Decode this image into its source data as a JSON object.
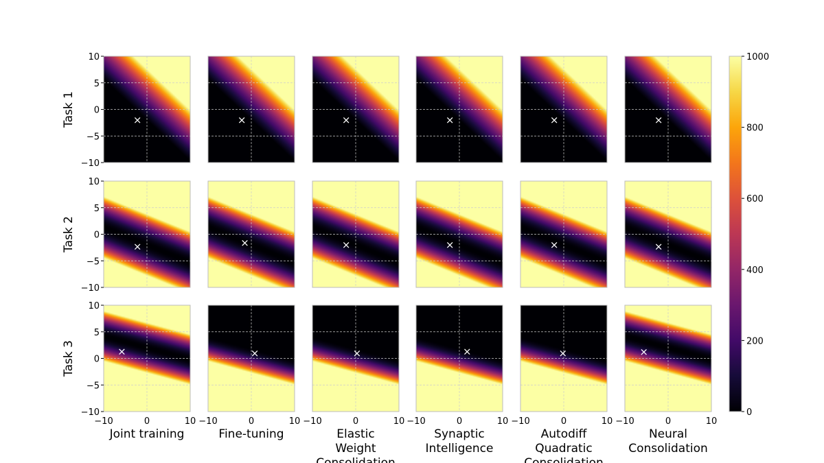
{
  "chart_data": {
    "type": "heatmap",
    "x_range": [
      -10,
      10
    ],
    "y_range": [
      -10,
      10
    ],
    "x_ticks": [
      "−10",
      "0",
      "10"
    ],
    "y_ticks": [
      "10",
      "5",
      "0",
      "−5",
      "−10"
    ],
    "grid": true,
    "colorbar": {
      "colormap": "inferno",
      "range": [
        0,
        1000
      ],
      "ticks": [
        "1000",
        "800",
        "600",
        "400",
        "200",
        "0"
      ]
    },
    "rows": [
      {
        "label": "Task 1",
        "loss": {
          "form": "shifted",
          "a": 1.0,
          "b": 1.3,
          "c": 2.6,
          "scale": 40
        }
      },
      {
        "label": "Task 2",
        "loss": {
          "form": "squared",
          "a": 0.33,
          "b": 1.0,
          "c": 2.0,
          "scale": 30
        }
      },
      {
        "label": "Task 3",
        "loss": {
          "form": "squared",
          "a": 0.22,
          "b": 1.0,
          "c": -2.0,
          "scale": 45,
          "mirrored_with": "Task 2"
        }
      }
    ],
    "columns": [
      {
        "label": [
          "Joint training"
        ],
        "points": [
          [
            -2.2,
            -2.0
          ],
          [
            -2.2,
            -2.3
          ],
          [
            -5.8,
            1.3
          ]
        ]
      },
      {
        "label": [
          "Fine-tuning"
        ],
        "points": [
          [
            -2.2,
            -2.0
          ],
          [
            -1.5,
            -1.6
          ],
          [
            0.8,
            1.0
          ]
        ]
      },
      {
        "label": [
          "Elastic",
          "Weight",
          "Consolidation"
        ],
        "points": [
          [
            -2.2,
            -2.0
          ],
          [
            -2.2,
            -2.0
          ],
          [
            0.3,
            1.0
          ]
        ]
      },
      {
        "label": [
          "Synaptic",
          "Intelligence"
        ],
        "points": [
          [
            -2.2,
            -2.0
          ],
          [
            -2.2,
            -2.0
          ],
          [
            1.8,
            1.3
          ]
        ]
      },
      {
        "label": [
          "Autodiff",
          "Quadratic",
          "Consolidation"
        ],
        "points": [
          [
            -2.2,
            -2.0
          ],
          [
            -2.2,
            -2.0
          ],
          [
            -0.2,
            1.0
          ]
        ]
      },
      {
        "label": [
          "Neural",
          "Consolidation"
        ],
        "points": [
          [
            -2.2,
            -2.0
          ],
          [
            -2.2,
            -2.3
          ],
          [
            -5.6,
            1.2
          ]
        ]
      }
    ],
    "marker": "×"
  }
}
